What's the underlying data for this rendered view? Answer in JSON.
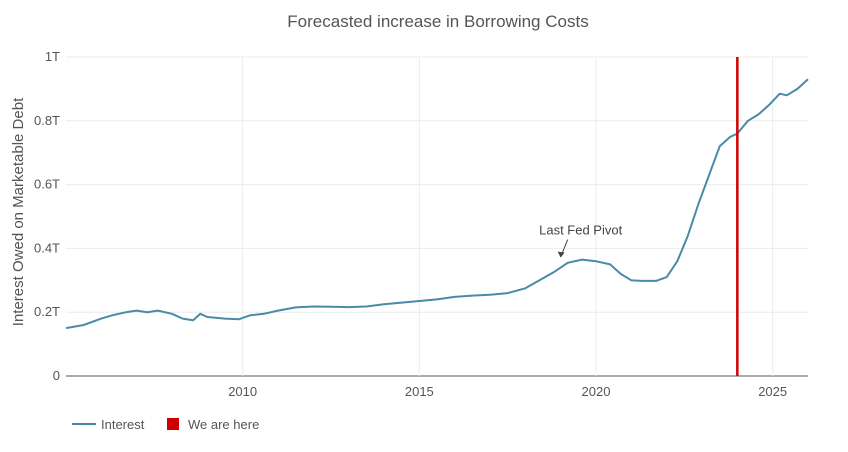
{
  "chart_data": {
    "type": "line",
    "title": "Forecasted increase in Borrowing Costs",
    "xlabel": "",
    "ylabel": "Interest Owed on Marketable Debt",
    "xlim": [
      2005.0,
      2026.0
    ],
    "ylim": [
      0,
      1.0
    ],
    "x_ticks": [
      {
        "value": 2010,
        "label": "2010"
      },
      {
        "value": 2015,
        "label": "2015"
      },
      {
        "value": 2020,
        "label": "2020"
      },
      {
        "value": 2025,
        "label": "2025"
      }
    ],
    "y_ticks": [
      {
        "value": 0,
        "label": "0"
      },
      {
        "value": 0.2,
        "label": "0.2T"
      },
      {
        "value": 0.4,
        "label": "0.4T"
      },
      {
        "value": 0.6,
        "label": "0.6T"
      },
      {
        "value": 0.8,
        "label": "0.8T"
      },
      {
        "value": 1.0,
        "label": "1T"
      }
    ],
    "grid": true,
    "legend_position": "bottom-left",
    "series": [
      {
        "name": "Interest",
        "color": "#4a8aa8",
        "x": [
          2005.0,
          2005.5,
          2006.0,
          2006.3,
          2006.7,
          2007.0,
          2007.3,
          2007.6,
          2008.0,
          2008.3,
          2008.6,
          2008.8,
          2009.0,
          2009.5,
          2009.9,
          2010.2,
          2010.6,
          2011.0,
          2011.5,
          2012.0,
          2012.5,
          2013.0,
          2013.5,
          2014.0,
          2014.5,
          2015.0,
          2015.5,
          2016.0,
          2016.5,
          2017.0,
          2017.5,
          2018.0,
          2018.4,
          2018.8,
          2019.2,
          2019.6,
          2020.0,
          2020.4,
          2020.7,
          2021.0,
          2021.3,
          2021.7,
          2022.0,
          2022.3,
          2022.6,
          2022.9,
          2023.2,
          2023.5,
          2023.8,
          2024.0,
          2024.3,
          2024.6,
          2024.9,
          2025.2,
          2025.4,
          2025.7,
          2026.0
        ],
        "values": [
          0.15,
          0.16,
          0.18,
          0.19,
          0.2,
          0.205,
          0.2,
          0.205,
          0.195,
          0.18,
          0.175,
          0.195,
          0.185,
          0.18,
          0.178,
          0.19,
          0.195,
          0.205,
          0.215,
          0.218,
          0.217,
          0.216,
          0.218,
          0.225,
          0.23,
          0.235,
          0.24,
          0.248,
          0.252,
          0.255,
          0.26,
          0.275,
          0.3,
          0.325,
          0.355,
          0.365,
          0.36,
          0.35,
          0.32,
          0.3,
          0.298,
          0.298,
          0.31,
          0.36,
          0.44,
          0.54,
          0.63,
          0.72,
          0.75,
          0.76,
          0.8,
          0.82,
          0.85,
          0.885,
          0.88,
          0.9,
          0.93
        ]
      },
      {
        "name": "We are here",
        "color": "#d00000",
        "x_value": 2024.0
      }
    ],
    "annotations": [
      {
        "text": "Last Fed Pivot",
        "x": 2019.0,
        "y": 0.365
      }
    ]
  }
}
